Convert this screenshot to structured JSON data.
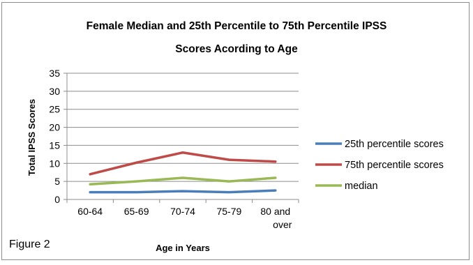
{
  "chart_data": {
    "type": "line",
    "title_line1": "Female Median and 25th Percentile to 75th Percentile IPSS",
    "title_line2": "Scores Acording to Age",
    "xlabel": "Age in Years",
    "ylabel": "Total IPSS Scores",
    "categories": [
      {
        "line1": "60-64",
        "line2": ""
      },
      {
        "line1": "65-69",
        "line2": ""
      },
      {
        "line1": "70-74",
        "line2": ""
      },
      {
        "line1": "75-79",
        "line2": ""
      },
      {
        "line1": "80 and",
        "line2": "over"
      }
    ],
    "ylim": [
      0,
      35
    ],
    "yticks": [
      0,
      5,
      10,
      15,
      20,
      25,
      30,
      35
    ],
    "grid": true,
    "legend_position": "right",
    "series": [
      {
        "name": "25th percentile scores",
        "color": "#4a7ebb",
        "values": [
          2,
          2,
          2.3,
          2,
          2.5
        ]
      },
      {
        "name": "75th percentile scores",
        "color": "#be4b48",
        "values": [
          7,
          10.2,
          13,
          11,
          10.5
        ]
      },
      {
        "name": "median",
        "color": "#98b954",
        "values": [
          4.2,
          5,
          6,
          5,
          6
        ]
      }
    ]
  },
  "caption": "Figure 2"
}
